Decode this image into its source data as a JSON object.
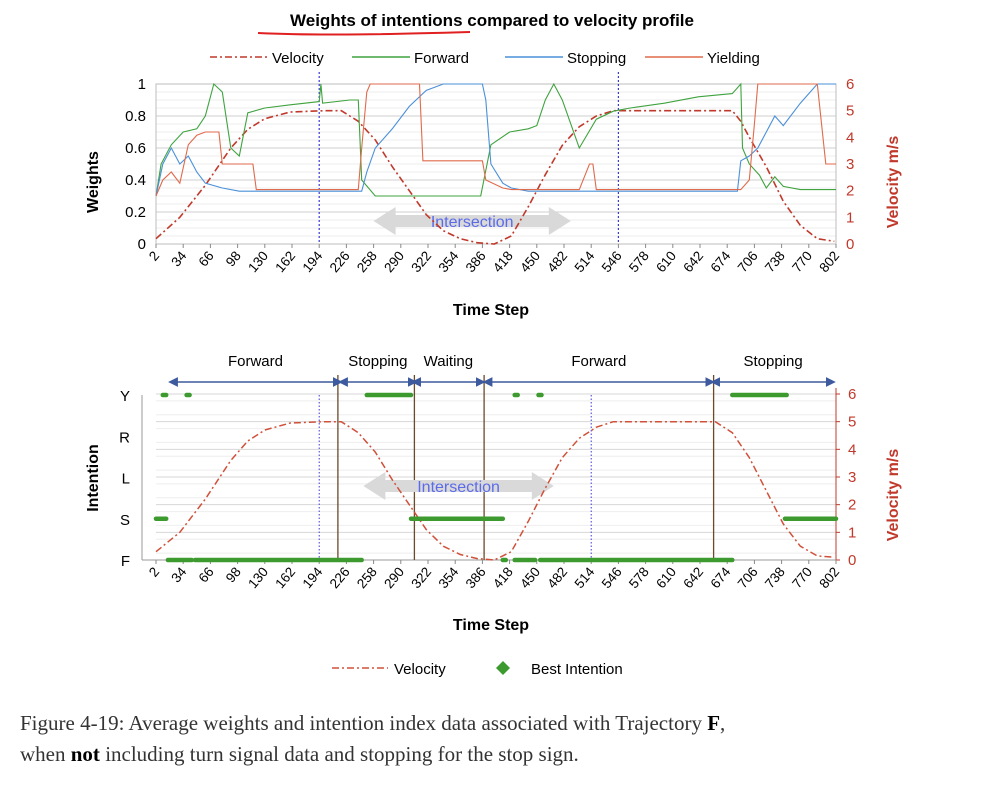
{
  "chart_data": [
    {
      "type": "line",
      "title": "Weights of intentions compared to velocity profile",
      "xlabel": "Time Step",
      "ylabel": "Weights",
      "ylabel_right": "Velocity m/s",
      "ylim": [
        0,
        1
      ],
      "ylim_right": [
        0,
        6
      ],
      "yticks": [
        "1",
        "0.8",
        "0.6",
        "0.4",
        "0.2",
        "0"
      ],
      "yticks_right": [
        "6",
        "5",
        "4",
        "3",
        "2",
        "1",
        "0"
      ],
      "xlim": [
        2,
        802
      ],
      "xticks": [
        "2",
        "34",
        "66",
        "98",
        "130",
        "162",
        "194",
        "226",
        "258",
        "290",
        "322",
        "354",
        "386",
        "418",
        "450",
        "482",
        "514",
        "546",
        "578",
        "610",
        "642",
        "674",
        "706",
        "738",
        "770",
        "802"
      ],
      "legend": [
        "Velocity",
        "Forward",
        "Stopping",
        "Yielding"
      ],
      "annotation": "Intersection",
      "vlines": [
        194,
        546
      ],
      "series": [
        {
          "name": "Velocity",
          "color": "#c0392b",
          "axis": "right",
          "x": [
            2,
            30,
            60,
            90,
            110,
            130,
            160,
            200,
            220,
            240,
            260,
            280,
            300,
            320,
            340,
            360,
            380,
            400,
            420,
            440,
            460,
            480,
            500,
            520,
            540,
            560,
            600,
            640,
            680,
            690,
            700,
            720,
            740,
            760,
            780,
            800
          ],
          "values": [
            0.2,
            1.0,
            2.2,
            3.6,
            4.3,
            4.7,
            4.95,
            5.0,
            5.0,
            4.6,
            3.9,
            2.9,
            2.0,
            1.1,
            0.5,
            0.2,
            0.05,
            0.0,
            0.3,
            1.4,
            2.6,
            3.7,
            4.4,
            4.8,
            5.0,
            5.0,
            5.0,
            5.0,
            5.0,
            4.6,
            4.0,
            2.9,
            1.6,
            0.7,
            0.2,
            0.1
          ]
        },
        {
          "name": "Forward",
          "color": "#3fa33f",
          "axis": "left",
          "x": [
            2,
            8,
            20,
            34,
            50,
            60,
            70,
            80,
            90,
            100,
            110,
            130,
            160,
            194,
            196,
            198,
            230,
            240,
            244,
            260,
            300,
            340,
            380,
            384,
            396,
            418,
            440,
            450,
            460,
            470,
            480,
            500,
            520,
            540,
            560,
            600,
            640,
            680,
            690,
            692,
            700,
            712,
            720,
            730,
            740,
            760,
            802
          ],
          "values": [
            0.3,
            0.5,
            0.62,
            0.7,
            0.72,
            0.8,
            1.0,
            0.95,
            0.6,
            0.55,
            0.82,
            0.85,
            0.87,
            0.89,
            1.0,
            0.88,
            0.9,
            0.9,
            0.4,
            0.3,
            0.3,
            0.3,
            0.3,
            0.3,
            0.62,
            0.7,
            0.72,
            0.74,
            0.9,
            1.0,
            0.9,
            0.6,
            0.78,
            0.83,
            0.85,
            0.88,
            0.92,
            0.94,
            1.0,
            0.6,
            0.5,
            0.43,
            0.35,
            0.42,
            0.36,
            0.34,
            0.34
          ]
        },
        {
          "name": "Stopping",
          "color": "#4a90d9",
          "axis": "left",
          "x": [
            2,
            10,
            20,
            30,
            40,
            50,
            60,
            80,
            100,
            130,
            160,
            194,
            196,
            200,
            230,
            240,
            244,
            250,
            260,
            280,
            300,
            320,
            340,
            360,
            380,
            386,
            390,
            396,
            410,
            420,
            440,
            480,
            520,
            560,
            600,
            640,
            680,
            686,
            690,
            700,
            710,
            720,
            730,
            740,
            760,
            780,
            802
          ],
          "values": [
            0.3,
            0.5,
            0.6,
            0.5,
            0.55,
            0.45,
            0.38,
            0.35,
            0.33,
            0.33,
            0.33,
            0.33,
            0.33,
            0.33,
            0.33,
            0.33,
            0.33,
            0.45,
            0.6,
            0.72,
            0.86,
            0.96,
            1.0,
            1.0,
            1.0,
            1.0,
            0.9,
            0.5,
            0.38,
            0.35,
            0.33,
            0.33,
            0.33,
            0.33,
            0.33,
            0.33,
            0.33,
            0.33,
            0.52,
            0.55,
            0.6,
            0.7,
            0.8,
            0.74,
            0.88,
            1.0,
            1.0
          ]
        },
        {
          "name": "Yielding",
          "color": "#e06a4c",
          "axis": "left",
          "x": [
            2,
            10,
            20,
            30,
            40,
            50,
            60,
            76,
            80,
            90,
            110,
            116,
            120,
            150,
            160,
            194,
            200,
            230,
            240,
            244,
            250,
            254,
            270,
            290,
            300,
            312,
            316,
            320,
            360,
            386,
            390,
            410,
            420,
            450,
            480,
            500,
            512,
            516,
            520,
            560,
            600,
            640,
            680,
            690,
            700,
            706,
            710,
            720,
            730,
            740,
            760,
            780,
            790,
            802
          ],
          "values": [
            0.3,
            0.4,
            0.45,
            0.38,
            0.62,
            0.68,
            0.7,
            0.7,
            0.5,
            0.5,
            0.5,
            0.5,
            0.34,
            0.34,
            0.34,
            0.34,
            0.34,
            0.34,
            0.34,
            0.6,
            0.95,
            1.0,
            1.0,
            1.0,
            1.0,
            1.0,
            0.52,
            0.52,
            0.52,
            0.52,
            0.4,
            0.35,
            0.34,
            0.34,
            0.34,
            0.34,
            0.5,
            0.5,
            0.34,
            0.34,
            0.34,
            0.34,
            0.34,
            0.34,
            0.4,
            0.75,
            1.0,
            1.0,
            1.0,
            1.0,
            1.0,
            1.0,
            0.5,
            0.5
          ]
        }
      ]
    },
    {
      "type": "scatter",
      "xlabel": "Time Step",
      "ylabel": "Intention",
      "ylabel_right": "Velocity m/s",
      "categories_y": [
        "Y",
        "R",
        "L",
        "S",
        "F"
      ],
      "yticks_right": [
        "6",
        "5",
        "4",
        "3",
        "2",
        "1",
        "0"
      ],
      "xlim": [
        2,
        802
      ],
      "xticks": [
        "2",
        "34",
        "66",
        "98",
        "130",
        "162",
        "194",
        "226",
        "258",
        "290",
        "322",
        "354",
        "386",
        "418",
        "450",
        "482",
        "514",
        "546",
        "578",
        "610",
        "642",
        "674",
        "706",
        "738",
        "770",
        "802"
      ],
      "legend": [
        "Velocity",
        "Best Intention"
      ],
      "annotation": "Intersection",
      "phases": [
        {
          "label": "Forward",
          "from": 22,
          "to": 216
        },
        {
          "label": "Stopping",
          "from": 222,
          "to": 304
        },
        {
          "label": "Waiting",
          "from": 308,
          "to": 384
        },
        {
          "label": "Forward",
          "from": 392,
          "to": 654
        },
        {
          "label": "Stopping",
          "from": 660,
          "to": 796
        }
      ],
      "phase_lines": [
        216,
        306,
        388,
        658
      ],
      "vlines": [
        194,
        514
      ],
      "best_intention_segments": [
        {
          "intention": "Y",
          "from": 10,
          "to": 14
        },
        {
          "intention": "Y",
          "from": 38,
          "to": 40
        },
        {
          "intention": "F",
          "from": 16,
          "to": 44
        },
        {
          "intention": "F",
          "from": 48,
          "to": 244
        },
        {
          "intention": "Y",
          "from": 250,
          "to": 302
        },
        {
          "intention": "S",
          "from": 302,
          "to": 410
        },
        {
          "intention": "F",
          "from": 410,
          "to": 412
        },
        {
          "intention": "Y",
          "from": 424,
          "to": 426
        },
        {
          "intention": "Y",
          "from": 452,
          "to": 454
        },
        {
          "intention": "F",
          "from": 424,
          "to": 448
        },
        {
          "intention": "F",
          "from": 454,
          "to": 680
        },
        {
          "intention": "Y",
          "from": 680,
          "to": 744
        },
        {
          "intention": "S",
          "from": 2,
          "to": 14
        },
        {
          "intention": "S",
          "from": 742,
          "to": 802
        }
      ],
      "velocity": {
        "x": [
          2,
          30,
          60,
          90,
          110,
          130,
          160,
          200,
          220,
          240,
          260,
          280,
          300,
          320,
          340,
          360,
          380,
          400,
          420,
          440,
          460,
          480,
          500,
          520,
          540,
          560,
          600,
          640,
          660,
          680,
          700,
          720,
          740,
          760,
          780,
          800
        ],
        "values": [
          0.3,
          1.0,
          2.2,
          3.6,
          4.3,
          4.7,
          4.95,
          5.0,
          5.0,
          4.6,
          3.9,
          2.9,
          2.0,
          1.1,
          0.5,
          0.2,
          0.05,
          0.0,
          0.3,
          1.4,
          2.6,
          3.7,
          4.4,
          4.8,
          5.0,
          5.0,
          5.0,
          5.0,
          5.0,
          4.6,
          3.7,
          2.5,
          1.3,
          0.5,
          0.15,
          0.1
        ]
      }
    }
  ],
  "caption": {
    "prefix": "Figure 4-19:  Average weights and intention index data associated with Trajectory ",
    "bold1": "F",
    "mid": ",",
    "line2_pre": "when ",
    "bold2": "not",
    "line2_post": " including turn signal data and stopping for the stop sign."
  }
}
